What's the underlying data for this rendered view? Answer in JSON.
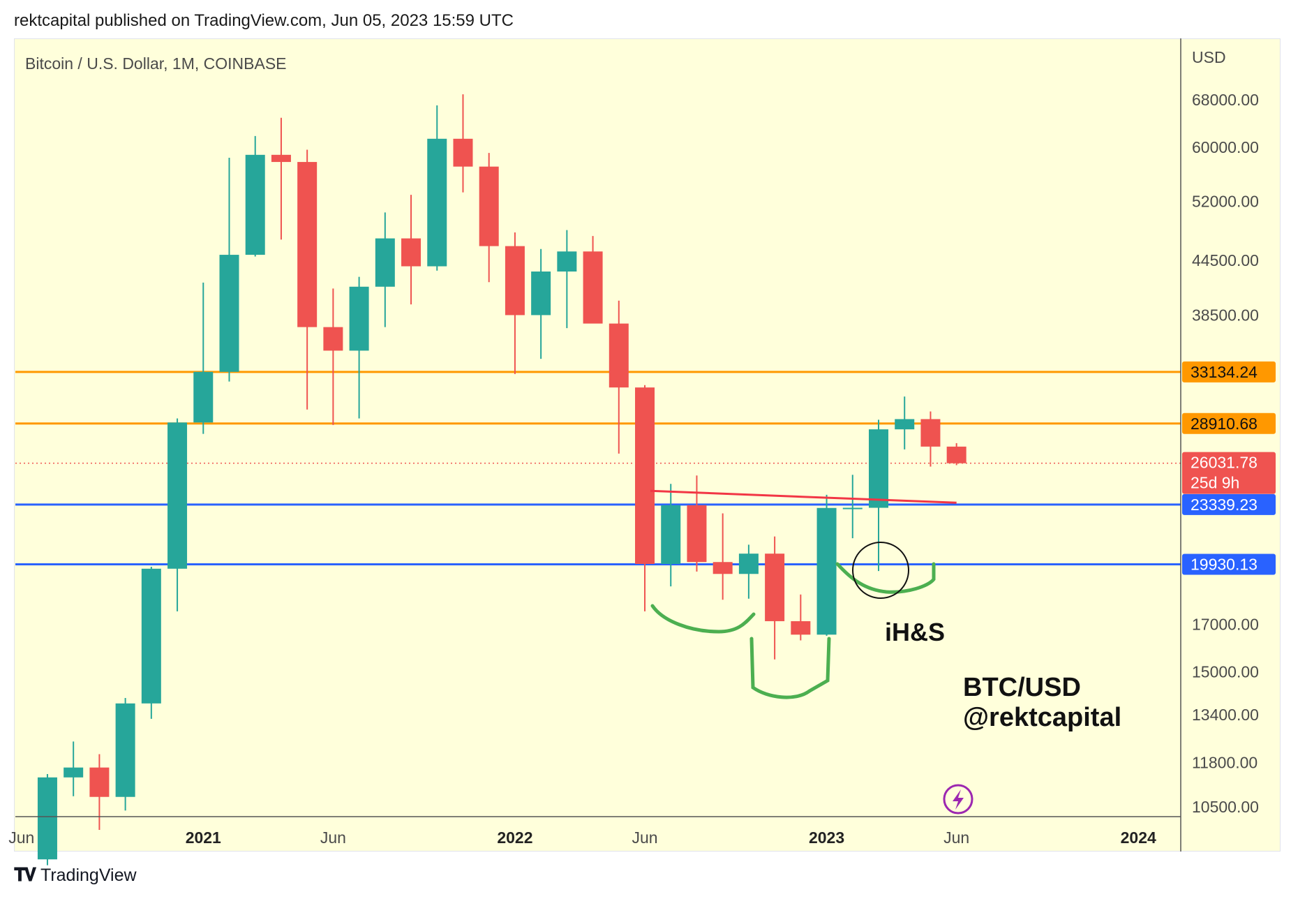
{
  "header": {
    "publish_line": "rektcapital published on TradingView.com, Jun 05, 2023 15:59 UTC"
  },
  "chart": {
    "symbol_label": "Bitcoin / U.S. Dollar, 1M, COINBASE",
    "currency_label": "USD",
    "annotation_pattern": "iH&S",
    "annotation_title_line1": "BTC/USD",
    "annotation_title_line2": "@rektcapital",
    "countdown": "25d 9h",
    "colors": {
      "background": "#ffffdb",
      "up": "#26a69a",
      "down": "#ef5350",
      "orange_level": "#ff9800",
      "blue_level": "#2962ff",
      "trendline": "#f23645",
      "shoulders": "#4caf50",
      "last_price_badge": "#ef5350"
    }
  },
  "footer": {
    "brand": "TradingView"
  },
  "chart_data": {
    "type": "candlestick",
    "title": "Bitcoin / U.S. Dollar, 1M, COINBASE",
    "scale": "log",
    "ylim": [
      10500,
      74000
    ],
    "y_ticks": [
      68000,
      60000,
      52000,
      44500,
      38500,
      17000,
      15000,
      13400,
      11800,
      10500
    ],
    "x_ticks": [
      {
        "label": "Jun",
        "date": "2020-06",
        "bold": false
      },
      {
        "label": "2021",
        "date": "2021-01",
        "bold": true
      },
      {
        "label": "Jun",
        "date": "2021-06",
        "bold": false
      },
      {
        "label": "2022",
        "date": "2022-01",
        "bold": true
      },
      {
        "label": "Jun",
        "date": "2022-06",
        "bold": false
      },
      {
        "label": "2023",
        "date": "2023-01",
        "bold": true
      },
      {
        "label": "Jun",
        "date": "2023-06",
        "bold": false
      },
      {
        "label": "2024",
        "date": "2024-01",
        "bold": true
      }
    ],
    "candles": [
      {
        "date": "2020-07",
        "o": 9140,
        "h": 11450,
        "l": 9000,
        "c": 11350
      },
      {
        "date": "2020-08",
        "o": 11350,
        "h": 12480,
        "l": 10800,
        "c": 11650
      },
      {
        "date": "2020-09",
        "o": 11650,
        "h": 12070,
        "l": 9880,
        "c": 10780
      },
      {
        "date": "2020-10",
        "o": 10780,
        "h": 14000,
        "l": 10400,
        "c": 13800
      },
      {
        "date": "2020-11",
        "o": 13800,
        "h": 19800,
        "l": 13250,
        "c": 19700
      },
      {
        "date": "2020-12",
        "o": 19700,
        "h": 29300,
        "l": 17600,
        "c": 28990
      },
      {
        "date": "2021-01",
        "o": 28990,
        "h": 41950,
        "l": 28130,
        "c": 33140
      },
      {
        "date": "2021-02",
        "o": 33140,
        "h": 58350,
        "l": 32300,
        "c": 45150
      },
      {
        "date": "2021-03",
        "o": 45150,
        "h": 61800,
        "l": 44950,
        "c": 58800
      },
      {
        "date": "2021-04",
        "o": 58800,
        "h": 64850,
        "l": 47000,
        "c": 57700
      },
      {
        "date": "2021-05",
        "o": 57700,
        "h": 59600,
        "l": 30000,
        "c": 37300
      },
      {
        "date": "2021-06",
        "o": 37300,
        "h": 41300,
        "l": 28800,
        "c": 35050
      },
      {
        "date": "2021-07",
        "o": 35050,
        "h": 42600,
        "l": 29300,
        "c": 41500
      },
      {
        "date": "2021-08",
        "o": 41500,
        "h": 50500,
        "l": 37300,
        "c": 47150
      },
      {
        "date": "2021-09",
        "o": 47150,
        "h": 52900,
        "l": 39600,
        "c": 43800
      },
      {
        "date": "2021-10",
        "o": 43800,
        "h": 67000,
        "l": 43300,
        "c": 61350
      },
      {
        "date": "2021-11",
        "o": 61350,
        "h": 69000,
        "l": 53250,
        "c": 57000
      },
      {
        "date": "2021-12",
        "o": 57000,
        "h": 59100,
        "l": 42000,
        "c": 46200
      },
      {
        "date": "2022-01",
        "o": 46200,
        "h": 47900,
        "l": 32950,
        "c": 38500
      },
      {
        "date": "2022-02",
        "o": 38500,
        "h": 45850,
        "l": 34300,
        "c": 43200
      },
      {
        "date": "2022-03",
        "o": 43200,
        "h": 48200,
        "l": 37200,
        "c": 45550
      },
      {
        "date": "2022-04",
        "o": 45550,
        "h": 47450,
        "l": 37700,
        "c": 37650
      },
      {
        "date": "2022-05",
        "o": 37650,
        "h": 40000,
        "l": 26700,
        "c": 31800
      },
      {
        "date": "2022-06",
        "o": 31800,
        "h": 32000,
        "l": 17600,
        "c": 19950
      },
      {
        "date": "2022-07",
        "o": 19950,
        "h": 24650,
        "l": 18800,
        "c": 23300
      },
      {
        "date": "2022-08",
        "o": 23300,
        "h": 25200,
        "l": 19550,
        "c": 20050
      },
      {
        "date": "2022-09",
        "o": 20050,
        "h": 22800,
        "l": 18150,
        "c": 19430
      },
      {
        "date": "2022-10",
        "o": 19430,
        "h": 20990,
        "l": 18200,
        "c": 20500
      },
      {
        "date": "2022-11",
        "o": 20500,
        "h": 21450,
        "l": 15500,
        "c": 17150
      },
      {
        "date": "2022-12",
        "o": 17150,
        "h": 18400,
        "l": 16300,
        "c": 16550
      },
      {
        "date": "2023-01",
        "o": 16550,
        "h": 23950,
        "l": 16500,
        "c": 23130
      },
      {
        "date": "2023-02",
        "o": 23130,
        "h": 25250,
        "l": 21350,
        "c": 23140
      },
      {
        "date": "2023-03",
        "o": 23140,
        "h": 29200,
        "l": 19580,
        "c": 28470
      },
      {
        "date": "2023-04",
        "o": 28470,
        "h": 31050,
        "l": 27000,
        "c": 29250
      },
      {
        "date": "2023-05",
        "o": 29250,
        "h": 29850,
        "l": 25800,
        "c": 27200
      },
      {
        "date": "2023-06",
        "o": 27200,
        "h": 27450,
        "l": 25900,
        "c": 26030
      }
    ],
    "horizontal_levels": [
      {
        "value": 33134.24,
        "label": "33134.24",
        "color": "#ff9800"
      },
      {
        "value": 28910.68,
        "label": "28910.68",
        "color": "#ff9800"
      },
      {
        "value": 23339.23,
        "label": "23339.23",
        "color": "#2962ff"
      },
      {
        "value": 19930.13,
        "label": "19930.13",
        "color": "#2962ff"
      }
    ],
    "last_price": {
      "value": 26031.78,
      "label": "26031.78"
    },
    "trendline": {
      "from": {
        "date": "2022-06",
        "value": 24200
      },
      "to": {
        "date": "2023-06",
        "value": 23450
      }
    },
    "annotations": [
      "iH&S",
      "BTC/USD",
      "@rektcapital"
    ]
  }
}
